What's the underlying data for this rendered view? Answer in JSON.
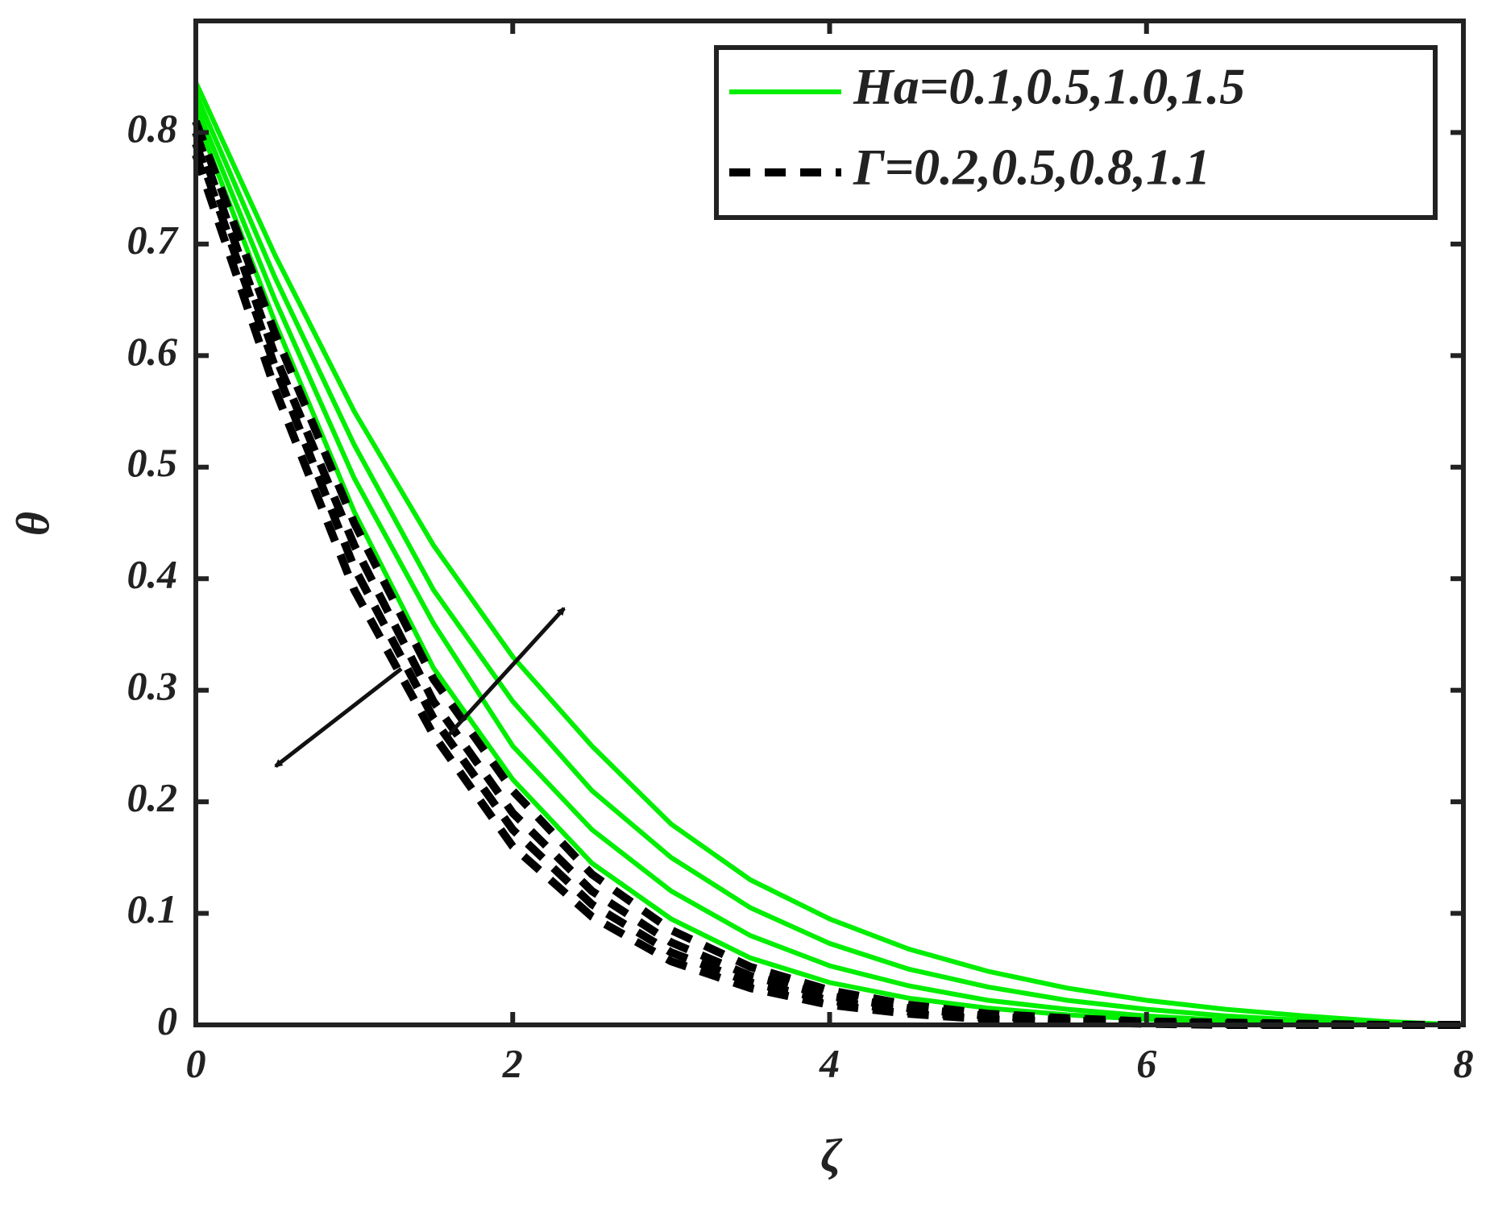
{
  "chart_data": {
    "type": "line",
    "x_label": "ζ",
    "y_label": "θ",
    "xlim": [
      0,
      8
    ],
    "ylim": [
      0,
      0.9
    ],
    "xticks": [
      0,
      2,
      4,
      6,
      8
    ],
    "yticks": [
      0,
      0.1,
      0.2,
      0.3,
      0.4,
      0.5,
      0.6,
      0.7,
      0.8
    ],
    "legend": "top-right",
    "x": [
      0,
      0.5,
      1,
      1.5,
      2,
      2.5,
      3,
      3.5,
      4,
      4.5,
      5,
      5.5,
      6,
      6.5,
      7,
      7.5,
      8
    ],
    "series": [
      {
        "name": "Ha=0.1,0.5,1.0,1.5",
        "color": "#00ee00",
        "dashed": false,
        "values": [
          [
            0.815,
            0.63,
            0.46,
            0.32,
            0.22,
            0.145,
            0.095,
            0.06,
            0.038,
            0.024,
            0.015,
            0.009,
            0.005,
            0.003,
            0.001,
            0.0005,
            0
          ],
          [
            0.825,
            0.65,
            0.49,
            0.36,
            0.25,
            0.175,
            0.12,
            0.08,
            0.053,
            0.035,
            0.022,
            0.014,
            0.008,
            0.004,
            0.002,
            0.001,
            0
          ],
          [
            0.835,
            0.67,
            0.52,
            0.39,
            0.29,
            0.21,
            0.15,
            0.105,
            0.073,
            0.05,
            0.034,
            0.022,
            0.014,
            0.008,
            0.004,
            0.002,
            0
          ],
          [
            0.845,
            0.69,
            0.55,
            0.43,
            0.33,
            0.25,
            0.18,
            0.13,
            0.095,
            0.068,
            0.048,
            0.033,
            0.022,
            0.014,
            0.008,
            0.003,
            0
          ]
        ]
      },
      {
        "name": "Γ=0.2,0.5,0.8,1.1",
        "color": "#000000",
        "dashed": true,
        "values": [
          [
            0.81,
            0.62,
            0.45,
            0.31,
            0.21,
            0.135,
            0.085,
            0.052,
            0.031,
            0.018,
            0.01,
            0.006,
            0.003,
            0.002,
            0.001,
            0,
            0
          ],
          [
            0.8,
            0.6,
            0.43,
            0.29,
            0.19,
            0.12,
            0.074,
            0.044,
            0.026,
            0.015,
            0.008,
            0.004,
            0.002,
            0.001,
            0,
            0,
            0
          ],
          [
            0.79,
            0.59,
            0.41,
            0.275,
            0.175,
            0.108,
            0.065,
            0.038,
            0.022,
            0.012,
            0.006,
            0.003,
            0.002,
            0.001,
            0,
            0,
            0
          ],
          [
            0.78,
            0.57,
            0.39,
            0.26,
            0.16,
            0.097,
            0.057,
            0.033,
            0.018,
            0.01,
            0.005,
            0.003,
            0.001,
            0,
            0,
            0,
            0
          ]
        ]
      }
    ]
  }
}
